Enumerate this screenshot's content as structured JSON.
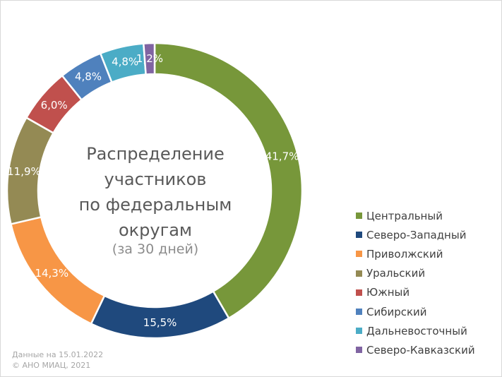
{
  "chart_data": {
    "type": "pie",
    "variant": "donut",
    "title_lines": [
      "Распределение",
      "участников",
      "по федеральным",
      "округам"
    ],
    "subtitle": "(за 30 дней)",
    "categories": [
      "Центральный",
      "Северо-Западный",
      "Приволжский",
      "Уральский",
      "Южный",
      "Сибирский",
      "Дальневосточный",
      "Северо-Кавказский"
    ],
    "values": [
      41.7,
      15.5,
      14.3,
      11.9,
      6.0,
      4.8,
      4.8,
      1.2
    ],
    "labels": [
      "41,7%",
      "15,5%",
      "14,3%",
      "11,9%",
      "6,0%",
      "4,8%",
      "4,8%",
      "1,2%"
    ],
    "colors": [
      "#77973a",
      "#1f497d",
      "#f79646",
      "#948a54",
      "#c0504d",
      "#4f81bd",
      "#4bacc6",
      "#8064a2"
    ],
    "legend_position": "right"
  },
  "footnote": {
    "line1": "Данные на 15.01.2022",
    "line2": "© АНО МИАЦ, 2021"
  }
}
